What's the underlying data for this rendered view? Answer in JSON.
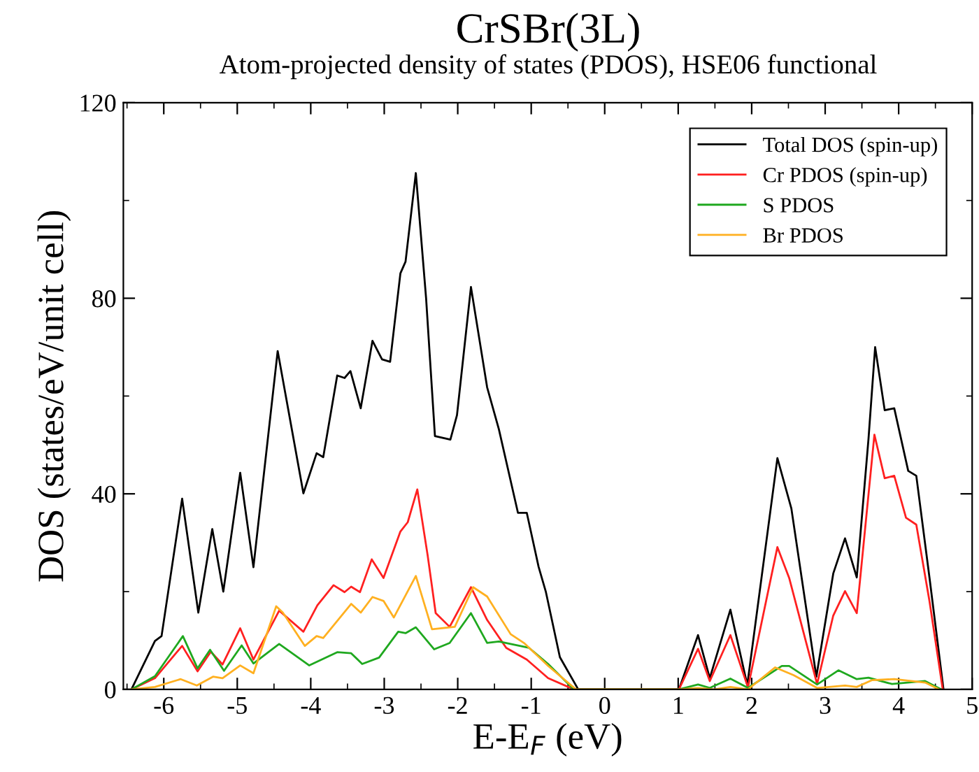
{
  "chart_data": {
    "type": "line",
    "title": "CrSBr(3L)",
    "subtitle": "Atom-projected density of states (PDOS), HSE06 functional",
    "xlabel": "E-E$_{F}$ (eV)",
    "ylabel": "DOS (states/eV/unit cell)",
    "xlim": [
      -6.55,
      5
    ],
    "ylim": [
      0,
      120
    ],
    "xticks": [
      {
        "value": -6.5,
        "label": null
      },
      -6,
      {
        "value": -5.5,
        "label": null
      },
      -5,
      {
        "value": -4.5,
        "label": null
      },
      -4,
      {
        "value": -3.5,
        "label": null
      },
      -3,
      {
        "value": -2.5,
        "label": null
      },
      -2,
      {
        "value": -1.5,
        "label": null
      },
      -1,
      {
        "value": -0.5,
        "label": null
      },
      0,
      {
        "value": 0.5,
        "label": null
      },
      1,
      {
        "value": 1.5,
        "label": null
      },
      2,
      {
        "value": 2.5,
        "label": null
      },
      3,
      {
        "value": 3.5,
        "label": null
      },
      4,
      {
        "value": 4.5,
        "label": null
      },
      5
    ],
    "yticks": [
      0,
      {
        "value": 20,
        "label": null
      },
      40,
      {
        "value": 60,
        "label": null
      },
      80,
      {
        "value": 100,
        "label": null
      },
      120
    ],
    "grid": false,
    "legend": "top right",
    "marker": "none",
    "line_style": "solid",
    "series": [
      {
        "name": "Total DOS (spin-up)",
        "color": "#000000",
        "x": [
          -6.44,
          -6.12,
          -6.03,
          -5.75,
          -5.53,
          -5.34,
          -5.19,
          -4.96,
          -4.78,
          -4.45,
          -4.1,
          -3.92,
          -3.83,
          -3.64,
          -3.54,
          -3.46,
          -3.32,
          -3.16,
          -3.03,
          -2.92,
          -2.78,
          -2.71,
          -2.57,
          -2.43,
          -2.31,
          -2.1,
          -2.01,
          -1.82,
          -1.6,
          -1.44,
          -1.18,
          -1.06,
          -0.9,
          -0.8,
          -0.61,
          -0.36,
          1.01,
          1.27,
          1.43,
          1.71,
          1.94,
          2.35,
          2.54,
          2.88,
          3.11,
          3.27,
          3.43,
          3.59,
          3.68,
          3.81,
          3.94,
          4.13,
          4.24,
          4.42,
          4.61
        ],
        "values": [
          0,
          9.9,
          10.9,
          39,
          15.7,
          32.8,
          20,
          44.3,
          25,
          69.2,
          40.1,
          48.3,
          47.5,
          64.2,
          63.7,
          65.1,
          57.5,
          71.3,
          67.5,
          67,
          85.1,
          87.5,
          105.6,
          79.9,
          51.8,
          51.1,
          56.1,
          82.3,
          61.8,
          53.2,
          36.1,
          36.1,
          25.1,
          19.9,
          6.6,
          0,
          0,
          11.1,
          2.3,
          16.3,
          0.9,
          47.3,
          37,
          2.6,
          23.7,
          30.9,
          22.9,
          51.3,
          70,
          57.1,
          57.5,
          44.7,
          43.7,
          22.8,
          0
        ]
      },
      {
        "name": "Cr PDOS (spin-up)",
        "color": "#ff2020",
        "x": [
          -6.44,
          -6.12,
          -5.75,
          -5.54,
          -5.36,
          -5.2,
          -4.96,
          -4.78,
          -4.43,
          -4.1,
          -3.91,
          -3.69,
          -3.54,
          -3.45,
          -3.33,
          -3.17,
          -3.01,
          -2.78,
          -2.68,
          -2.55,
          -2.41,
          -2.3,
          -2.11,
          -1.82,
          -1.6,
          -1.34,
          -1.06,
          -0.77,
          -0.42,
          1.01,
          1.27,
          1.43,
          1.71,
          1.95,
          2.35,
          2.51,
          2.89,
          3.11,
          3.27,
          3.43,
          3.67,
          3.81,
          3.94,
          4.1,
          4.24,
          4.42,
          4.6
        ],
        "values": [
          0,
          2.3,
          8.9,
          3.7,
          7.7,
          5.1,
          12.5,
          6.1,
          16.1,
          11.8,
          17.2,
          21.3,
          19.9,
          21,
          19.9,
          26.6,
          22.8,
          32.3,
          34.2,
          40.9,
          27.5,
          15.6,
          12.8,
          20.9,
          14.2,
          8.5,
          6.1,
          2.3,
          0,
          0,
          8.3,
          1.7,
          11.1,
          0.4,
          29.1,
          22.8,
          1.1,
          15.1,
          20.1,
          15.6,
          52.1,
          43.2,
          43.7,
          35.1,
          33.7,
          18,
          0
        ]
      },
      {
        "name": "S PDOS",
        "color": "#1fa81f",
        "x": [
          -6.44,
          -6.12,
          -5.74,
          -5.54,
          -5.37,
          -5.18,
          -4.94,
          -4.78,
          -4.43,
          -4.02,
          -3.64,
          -3.45,
          -3.3,
          -3.07,
          -2.81,
          -2.71,
          -2.57,
          -2.32,
          -2.11,
          -1.82,
          -1.6,
          -1.44,
          -1.03,
          -0.77,
          -0.42,
          1.01,
          1.27,
          1.43,
          1.71,
          1.95,
          2.41,
          2.51,
          2.89,
          3.18,
          3.43,
          3.59,
          3.91,
          4.36,
          4.58
        ],
        "values": [
          0,
          2.7,
          10.9,
          4.3,
          8.1,
          3.8,
          9,
          5.3,
          9.3,
          4.9,
          7.6,
          7.4,
          5.2,
          6.5,
          11.8,
          11.5,
          12.7,
          8.2,
          9.5,
          15.6,
          9.5,
          9.8,
          8.5,
          5.2,
          0,
          0,
          1,
          0.3,
          2.2,
          0.3,
          4.8,
          4.8,
          1,
          3.9,
          2.1,
          2.4,
          1.1,
          1.7,
          0
        ]
      },
      {
        "name": "Br PDOS",
        "color": "#ffb020",
        "x": [
          -6.44,
          -6.12,
          -5.77,
          -5.55,
          -5.33,
          -5.2,
          -4.96,
          -4.78,
          -4.47,
          -4.38,
          -4.08,
          -3.92,
          -3.83,
          -3.45,
          -3.32,
          -3.16,
          -3.01,
          -2.87,
          -2.57,
          -2.35,
          -2.04,
          -1.79,
          -1.6,
          -1.28,
          -1.09,
          -0.77,
          -0.39,
          1.01,
          1.27,
          1.49,
          1.71,
          1.95,
          2.32,
          2.57,
          2.89,
          3.27,
          3.43,
          3.64,
          3.94,
          4.36,
          4.55
        ],
        "values": [
          0,
          0.5,
          2.1,
          0.8,
          2.6,
          2.3,
          4.9,
          3.3,
          17,
          15.7,
          8.9,
          10.9,
          10.5,
          17.5,
          15.7,
          18.9,
          18.1,
          14.7,
          23.2,
          12.3,
          12.8,
          20.9,
          19,
          11.3,
          9.4,
          4.8,
          0,
          0,
          0.3,
          0,
          0.5,
          0,
          4.5,
          2.9,
          0.3,
          0.8,
          0.5,
          1.9,
          2.1,
          1.4,
          0
        ]
      }
    ]
  }
}
